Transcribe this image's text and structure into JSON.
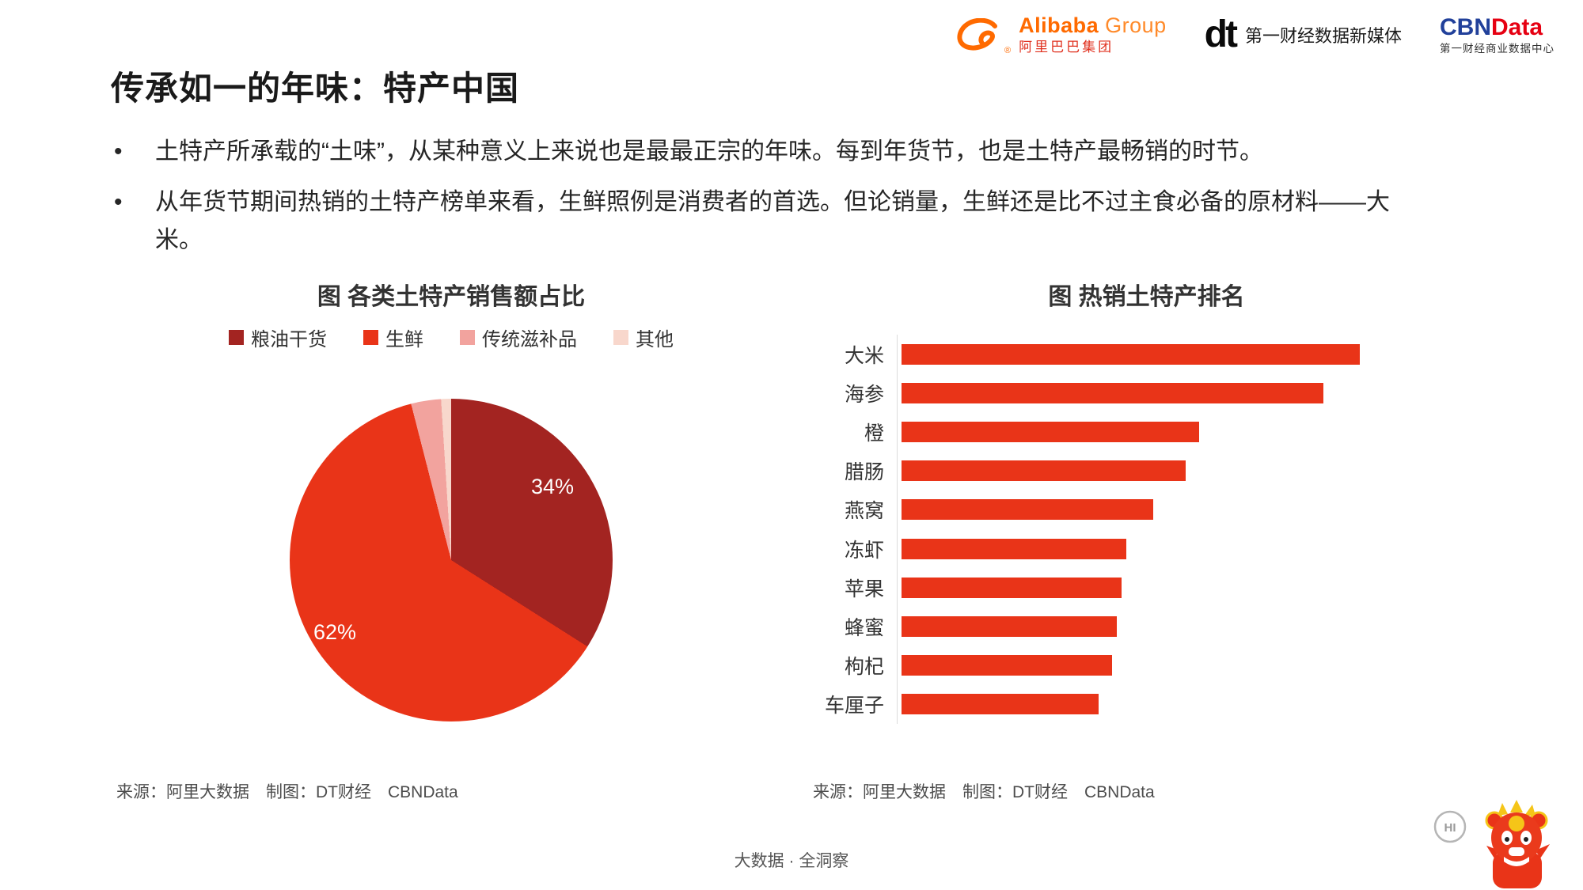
{
  "header": {
    "logos": {
      "alibaba": {
        "en_bold": "Alibaba",
        "en_light": "Group",
        "reg": "®",
        "cn": "阿里巴巴集团"
      },
      "dt": {
        "glyph": "dt",
        "label": "第一财经数据新媒体"
      },
      "cbndata": {
        "en_part1": "CBN",
        "en_part2": "Data",
        "label": "第一财经商业数据中心"
      }
    }
  },
  "title": "传承如一的年味：特产中国",
  "bullets": [
    "土特产所承载的“土味”，从某种意义上来说也是最最正宗的年味。每到年货节，也是土特产最畅销的时节。",
    "从年货节期间热销的土特产榜单来看，生鲜照例是消费者的首选。但论销量，生鲜还是比不过主食必备的原材料——大米。"
  ],
  "chart_data": [
    {
      "type": "pie",
      "title": "图 各类土特产销售额占比",
      "labels": [
        "粮油干货",
        "生鲜",
        "传统滋补品",
        "其他"
      ],
      "values": [
        34,
        62,
        3,
        1
      ],
      "colors": [
        "#a32421",
        "#e93418",
        "#f2a39e",
        "#f8d7cc"
      ],
      "data_labels": [
        "34%",
        "62%",
        "",
        ""
      ],
      "legend_position": "top",
      "start_angle_deg": 0,
      "direction": "clockwise",
      "source": "来源：阿里大数据　制图：DT财经　CBNData"
    },
    {
      "type": "bar",
      "orientation": "horizontal",
      "title": "图 热销土特产排名",
      "categories": [
        "大米",
        "海参",
        "橙",
        "腊肠",
        "燕窝",
        "冻虾",
        "苹果",
        "蜂蜜",
        "枸杞",
        "车厘子"
      ],
      "values": [
        100,
        92,
        65,
        62,
        55,
        49,
        48,
        47,
        46,
        43
      ],
      "values_note": "no value axis shown; bar lengths estimated relative to 大米 = 100",
      "bar_color": "#e93418",
      "grid": false,
      "source": "来源：阿里大数据　制图：DT财经　CBNData"
    }
  ],
  "footer": "大数据 · 全洞察",
  "mascot": {
    "bubble": "HI"
  },
  "colors": {
    "accent_red": "#e93418",
    "dark_red": "#a32421",
    "pink": "#f2a39e",
    "pale_pink": "#f8d7cc",
    "alibaba_orange": "#ff6a00",
    "cbn_blue": "#21409a",
    "cbn_red": "#e60012"
  }
}
